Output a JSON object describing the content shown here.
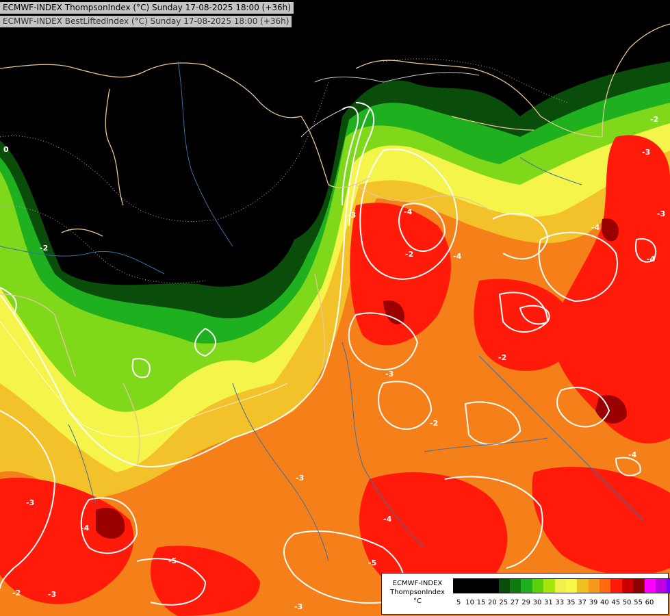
{
  "titles": {
    "line1": "ECMWF-INDEX ThompsonIndex (°C) Sunday 17-08-2025 18:00 (+36h)",
    "line2": "ECMWF-INDEX BestLiftedIndex (°C) Sunday 17-08-2025 18:00 (+36h)"
  },
  "legend": {
    "source": "ECMWF-INDEX",
    "variable": "ThompsonIndex",
    "unit": "°C",
    "thresholds": [
      "5",
      "10",
      "15",
      "20",
      "25",
      "27",
      "29",
      "30",
      "31",
      "33",
      "35",
      "37",
      "39",
      "40",
      "45",
      "50",
      "55",
      "60"
    ],
    "colors": [
      "#000000",
      "#000000",
      "#000000",
      "#000000",
      "#0a4d0a",
      "#0f7a0f",
      "#1fb01f",
      "#5bd10b",
      "#a6e60d",
      "#f0f04a",
      "#f7f74a",
      "#f0c020",
      "#f59a1a",
      "#ff6a0a",
      "#ff1a0a",
      "#c80000",
      "#8b0000",
      "#ff00ff",
      "#c000e0",
      "#8000ff",
      "#3a00ff",
      "#0000ff"
    ]
  },
  "contour_labels": [
    "0",
    "-2",
    "-3",
    "-4",
    "-2",
    "-3",
    "-4",
    "-2",
    "-3",
    "-4",
    "-2",
    "-3",
    "-4",
    "-5",
    "-2",
    "-3",
    "-4",
    "-3",
    "-2",
    "-4",
    "-5",
    "-3",
    "-4",
    "-3"
  ],
  "map": {
    "background": "#000000",
    "country_border_color": "#e8c79a",
    "river_color": "#3a6ea8",
    "isoline_color": "#ffffff"
  }
}
